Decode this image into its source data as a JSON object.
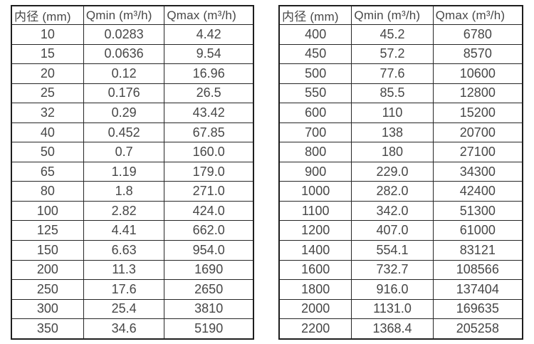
{
  "page": {
    "background_color": "#ffffff",
    "text_color": "#474747",
    "border_color": "#262626"
  },
  "tables": [
    {
      "id": "small-diameter-flow-table",
      "headers": [
        "内径 (mm)",
        "Qmin (m³/h)",
        "Qmax (m³/h)"
      ],
      "rows": [
        [
          "10",
          "0.0283",
          "4.42"
        ],
        [
          "15",
          "0.0636",
          "9.54"
        ],
        [
          "20",
          "0.12",
          "16.96"
        ],
        [
          "25",
          "0.176",
          "26.5"
        ],
        [
          "32",
          "0.29",
          "43.42"
        ],
        [
          "40",
          "0.452",
          "67.85"
        ],
        [
          "50",
          "0.7",
          "160.0"
        ],
        [
          "65",
          "1.19",
          "179.0"
        ],
        [
          "80",
          "1.8",
          "271.0"
        ],
        [
          "100",
          "2.82",
          "424.0"
        ],
        [
          "125",
          "4.41",
          "662.0"
        ],
        [
          "150",
          "6.63",
          "954.0"
        ],
        [
          "200",
          "11.3",
          "1690"
        ],
        [
          "250",
          "17.6",
          "2650"
        ],
        [
          "300",
          "25.4",
          "3810"
        ],
        [
          "350",
          "34.6",
          "5190"
        ]
      ]
    },
    {
      "id": "large-diameter-flow-table",
      "headers": [
        "内径 (mm)",
        "Qmin (m³/h)",
        "Qmax (m³/h)"
      ],
      "rows": [
        [
          "400",
          "45.2",
          "6780"
        ],
        [
          "450",
          "57.2",
          "8570"
        ],
        [
          "500",
          "77.6",
          "10600"
        ],
        [
          "550",
          "85.5",
          "12800"
        ],
        [
          "600",
          "110",
          "15200"
        ],
        [
          "700",
          "138",
          "20700"
        ],
        [
          "800",
          "180",
          "27100"
        ],
        [
          "900",
          "229.0",
          "34300"
        ],
        [
          "1000",
          "282.0",
          "42400"
        ],
        [
          "1100",
          "342.0",
          "51300"
        ],
        [
          "1200",
          "407.0",
          "61000"
        ],
        [
          "1400",
          "554.1",
          "83121"
        ],
        [
          "1600",
          "732.7",
          "108566"
        ],
        [
          "1800",
          "916.0",
          "137404"
        ],
        [
          "2000",
          "1131.0",
          "169635"
        ],
        [
          "2200",
          "1368.4",
          "205258"
        ]
      ]
    }
  ]
}
